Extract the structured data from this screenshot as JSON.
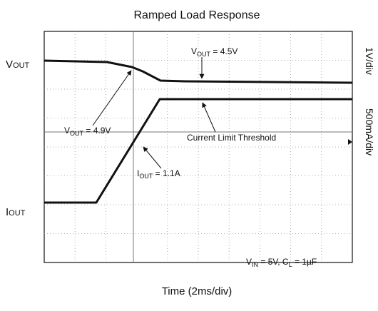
{
  "title": "Ramped Load Response",
  "channel_labels": {
    "vout": {
      "main": "V",
      "sub": "OUT"
    },
    "iout": {
      "main": "I",
      "sub": "OUT"
    }
  },
  "scales": {
    "ch1": "1V/div",
    "ch2": "500mA/div"
  },
  "x_label": "Time (2ms/div)",
  "annotations": {
    "vout_45": {
      "main": "V",
      "sub": "OUT",
      "rest": " = 4.5V"
    },
    "vout_49": {
      "main": "V",
      "sub": "OUT",
      "rest": " = 4.9V"
    },
    "limit": "Current Limit Threshold",
    "iout_11": {
      "main": "I",
      "sub": "OUT",
      "rest": " = 1.1A"
    },
    "conditions": {
      "a": "V",
      "a_sub": "IN",
      "b": " = 5V, C",
      "b_sub": "L",
      "c": " = 1µF"
    }
  }
}
